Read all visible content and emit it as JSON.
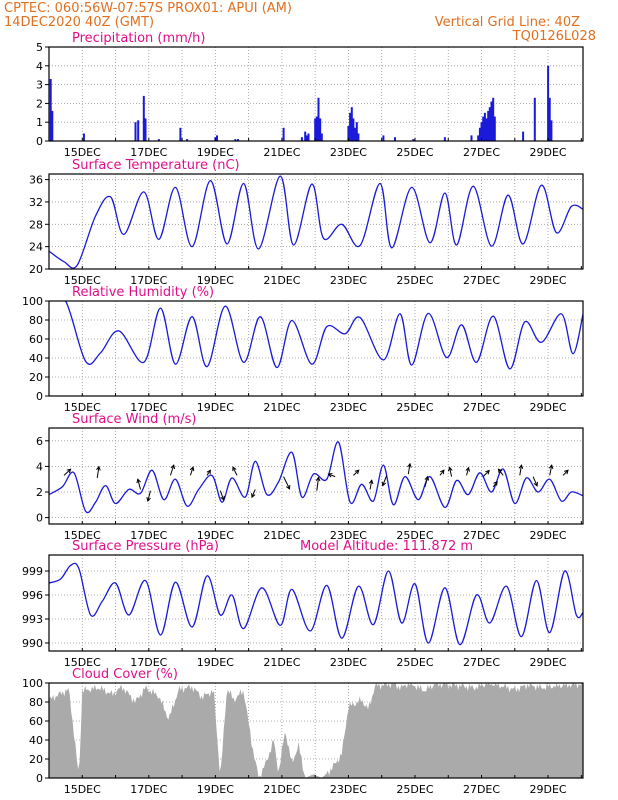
{
  "header": {
    "line1_left": "CPTEC:   060:56W-07:57S   PROX01: APUI (AM)",
    "line2_left": "14DEC2020 40Z (GMT)",
    "line2_right": "Vertical Grid Line: 40Z",
    "line3_right": "TQ0126L028",
    "text_color": "#e07020"
  },
  "style": {
    "title_color": "#e0108a",
    "series_color": "#1a1ad8",
    "cloud_fill": "#aaaaaa",
    "arrow_color": "#000000"
  },
  "chart_data": [
    {
      "id": "precip",
      "type": "bar",
      "title": "Precipitation (mm/h)",
      "ylim": [
        0,
        5
      ],
      "yticks": [
        0,
        1,
        2,
        3,
        4,
        5
      ],
      "x_labels": [
        "15DEC",
        "17DEC",
        "19DEC",
        "21DEC",
        "23DEC",
        "25DEC",
        "27DEC",
        "29DEC"
      ],
      "bars": [
        {
          "x": 0.05,
          "v": 3.3
        },
        {
          "x": 0.1,
          "v": 1.6
        },
        {
          "x": 1.05,
          "v": 0.4
        },
        {
          "x": 2.6,
          "v": 1.0
        },
        {
          "x": 2.68,
          "v": 1.1
        },
        {
          "x": 2.85,
          "v": 2.4
        },
        {
          "x": 2.9,
          "v": 1.2
        },
        {
          "x": 3.3,
          "v": 0.1
        },
        {
          "x": 3.95,
          "v": 0.7
        },
        {
          "x": 4.15,
          "v": 0.1
        },
        {
          "x": 5.0,
          "v": 0.2
        },
        {
          "x": 5.05,
          "v": 0.3
        },
        {
          "x": 5.6,
          "v": 0.1
        },
        {
          "x": 5.68,
          "v": 0.1
        },
        {
          "x": 7.05,
          "v": 0.7
        },
        {
          "x": 7.6,
          "v": 0.2
        },
        {
          "x": 7.7,
          "v": 0.5
        },
        {
          "x": 7.75,
          "v": 0.3
        },
        {
          "x": 7.8,
          "v": 0.4
        },
        {
          "x": 8.0,
          "v": 1.2
        },
        {
          "x": 8.05,
          "v": 1.3
        },
        {
          "x": 8.1,
          "v": 2.3
        },
        {
          "x": 8.15,
          "v": 1.2
        },
        {
          "x": 8.2,
          "v": 0.4
        },
        {
          "x": 9.0,
          "v": 0.8
        },
        {
          "x": 9.05,
          "v": 1.5
        },
        {
          "x": 9.1,
          "v": 1.8
        },
        {
          "x": 9.15,
          "v": 1.2
        },
        {
          "x": 9.2,
          "v": 0.7
        },
        {
          "x": 9.25,
          "v": 1.0
        },
        {
          "x": 9.3,
          "v": 0.4
        },
        {
          "x": 10.05,
          "v": 0.3
        },
        {
          "x": 10.4,
          "v": 0.2
        },
        {
          "x": 10.95,
          "v": 0.1
        },
        {
          "x": 11.9,
          "v": 0.2
        },
        {
          "x": 12.7,
          "v": 0.3
        },
        {
          "x": 12.9,
          "v": 0.3
        },
        {
          "x": 12.95,
          "v": 0.7
        },
        {
          "x": 13.0,
          "v": 1.0
        },
        {
          "x": 13.05,
          "v": 1.3
        },
        {
          "x": 13.1,
          "v": 1.5
        },
        {
          "x": 13.15,
          "v": 1.2
        },
        {
          "x": 13.2,
          "v": 1.6
        },
        {
          "x": 13.25,
          "v": 1.8
        },
        {
          "x": 13.3,
          "v": 2.1
        },
        {
          "x": 13.35,
          "v": 2.3
        },
        {
          "x": 13.4,
          "v": 1.3
        },
        {
          "x": 14.25,
          "v": 0.5
        },
        {
          "x": 14.6,
          "v": 2.3
        },
        {
          "x": 15.0,
          "v": 4.0
        },
        {
          "x": 15.05,
          "v": 2.3
        },
        {
          "x": 15.1,
          "v": 1.1
        }
      ]
    },
    {
      "id": "temp",
      "type": "line",
      "title": "Surface Temperature (nC)",
      "ylim": [
        20,
        37
      ],
      "yticks": [
        20,
        24,
        28,
        32,
        36
      ],
      "x_labels": [
        "15DEC",
        "17DEC",
        "19DEC",
        "21DEC",
        "23DEC",
        "25DEC",
        "27DEC",
        "29DEC"
      ],
      "anchors": [
        [
          0.0,
          23.2
        ],
        [
          0.45,
          21.3
        ],
        [
          0.85,
          20.7
        ],
        [
          1.4,
          29.5
        ],
        [
          1.85,
          32.9
        ],
        [
          2.25,
          26.2
        ],
        [
          2.85,
          33.8
        ],
        [
          3.3,
          25.3
        ],
        [
          3.8,
          34.6
        ],
        [
          4.3,
          24.0
        ],
        [
          4.85,
          35.8
        ],
        [
          5.35,
          24.5
        ],
        [
          5.85,
          35.3
        ],
        [
          6.3,
          23.6
        ],
        [
          6.95,
          36.6
        ],
        [
          7.35,
          24.3
        ],
        [
          7.9,
          35.2
        ],
        [
          8.25,
          25.5
        ],
        [
          8.8,
          28.0
        ],
        [
          9.35,
          24.2
        ],
        [
          9.95,
          35.3
        ],
        [
          10.3,
          23.8
        ],
        [
          10.9,
          34.6
        ],
        [
          11.45,
          24.7
        ],
        [
          11.9,
          33.6
        ],
        [
          12.25,
          24.3
        ],
        [
          12.75,
          34.8
        ],
        [
          13.3,
          24.1
        ],
        [
          13.8,
          33.2
        ],
        [
          14.25,
          24.5
        ],
        [
          14.8,
          35.0
        ],
        [
          15.25,
          26.5
        ],
        [
          15.7,
          31.2
        ],
        [
          16.05,
          30.7
        ]
      ]
    },
    {
      "id": "rh",
      "type": "line",
      "title": "Relative Humidity (%)",
      "ylim": [
        0,
        100
      ],
      "yticks": [
        0,
        20,
        40,
        60,
        80,
        100
      ],
      "x_labels": [
        "15DEC",
        "17DEC",
        "19DEC",
        "21DEC",
        "23DEC",
        "25DEC",
        "27DEC",
        "29DEC"
      ],
      "anchors": [
        [
          0.0,
          100
        ],
        [
          0.5,
          100
        ],
        [
          1.1,
          36.5
        ],
        [
          1.55,
          45.5
        ],
        [
          2.1,
          68.5
        ],
        [
          2.85,
          35.5
        ],
        [
          3.35,
          92.5
        ],
        [
          3.8,
          33.5
        ],
        [
          4.3,
          83.5
        ],
        [
          4.75,
          31.0
        ],
        [
          5.3,
          94.5
        ],
        [
          5.85,
          35.5
        ],
        [
          6.35,
          83.5
        ],
        [
          6.85,
          30.0
        ],
        [
          7.3,
          79.5
        ],
        [
          7.9,
          33.5
        ],
        [
          8.35,
          73.0
        ],
        [
          8.9,
          65.5
        ],
        [
          9.35,
          82.5
        ],
        [
          10.05,
          38.0
        ],
        [
          10.55,
          86.5
        ],
        [
          10.9,
          32.5
        ],
        [
          11.4,
          87.0
        ],
        [
          11.95,
          40.5
        ],
        [
          12.4,
          75.0
        ],
        [
          12.85,
          35.5
        ],
        [
          13.35,
          84.0
        ],
        [
          13.85,
          28.5
        ],
        [
          14.3,
          78.0
        ],
        [
          14.8,
          56.5
        ],
        [
          15.4,
          86.5
        ],
        [
          15.75,
          44.5
        ],
        [
          16.05,
          86.0
        ]
      ]
    },
    {
      "id": "wind",
      "type": "line",
      "title": "Surface Wind (m/s)",
      "ylim": [
        -0.5,
        7
      ],
      "yticks": [
        0,
        2,
        4,
        6
      ],
      "x_labels": [
        "15DEC",
        "17DEC",
        "19DEC",
        "21DEC",
        "23DEC",
        "25DEC",
        "27DEC",
        "29DEC"
      ],
      "anchors": [
        [
          0.0,
          1.8
        ],
        [
          0.4,
          2.4
        ],
        [
          0.75,
          3.5
        ],
        [
          1.1,
          0.5
        ],
        [
          1.4,
          1.2
        ],
        [
          1.7,
          2.5
        ],
        [
          2.0,
          1.1
        ],
        [
          2.4,
          2.2
        ],
        [
          2.75,
          1.9
        ],
        [
          3.1,
          3.7
        ],
        [
          3.45,
          1.4
        ],
        [
          3.8,
          3.0
        ],
        [
          4.15,
          0.9
        ],
        [
          4.5,
          2.2
        ],
        [
          4.9,
          3.3
        ],
        [
          5.2,
          1.2
        ],
        [
          5.5,
          3.1
        ],
        [
          5.9,
          1.6
        ],
        [
          6.2,
          4.4
        ],
        [
          6.55,
          1.8
        ],
        [
          6.9,
          2.8
        ],
        [
          7.3,
          5.1
        ],
        [
          7.6,
          1.6
        ],
        [
          7.95,
          3.4
        ],
        [
          8.35,
          3.0
        ],
        [
          8.7,
          5.9
        ],
        [
          9.05,
          1.2
        ],
        [
          9.4,
          2.6
        ],
        [
          9.75,
          1.3
        ],
        [
          10.05,
          4.1
        ],
        [
          10.35,
          1.0
        ],
        [
          10.7,
          3.2
        ],
        [
          11.1,
          1.4
        ],
        [
          11.45,
          3.2
        ],
        [
          11.9,
          0.8
        ],
        [
          12.25,
          2.9
        ],
        [
          12.6,
          1.8
        ],
        [
          12.95,
          3.5
        ],
        [
          13.3,
          2.0
        ],
        [
          13.65,
          3.8
        ],
        [
          14.0,
          1.1
        ],
        [
          14.35,
          3.1
        ],
        [
          14.7,
          2.0
        ],
        [
          15.05,
          3.0
        ],
        [
          15.4,
          1.3
        ],
        [
          15.7,
          2.0
        ],
        [
          16.05,
          1.7
        ]
      ],
      "arrows": [
        [
          0.45,
          3.3,
          0.2,
          0.12
        ],
        [
          1.45,
          3.1,
          0.05,
          0.22
        ],
        [
          2.75,
          2.2,
          -0.08,
          0.2
        ],
        [
          3.05,
          2.1,
          -0.08,
          -0.2
        ],
        [
          3.65,
          3.3,
          0.1,
          0.2
        ],
        [
          4.25,
          3.3,
          0.08,
          0.16
        ],
        [
          4.75,
          3.3,
          0.1,
          0.1
        ],
        [
          5.15,
          2.1,
          0.1,
          -0.18
        ],
        [
          5.65,
          3.3,
          -0.12,
          0.16
        ],
        [
          6.2,
          2.2,
          -0.1,
          -0.15
        ],
        [
          7.05,
          3.2,
          0.18,
          -0.24
        ],
        [
          8.05,
          2.1,
          0.05,
          0.26
        ],
        [
          8.6,
          3.2,
          -0.2,
          0.05
        ],
        [
          9.15,
          3.3,
          0.16,
          0.1
        ],
        [
          9.65,
          2.2,
          0.05,
          0.18
        ],
        [
          10.15,
          3.3,
          -0.12,
          -0.2
        ],
        [
          10.8,
          3.4,
          0.05,
          0.2
        ],
        [
          11.3,
          2.4,
          0.08,
          0.2
        ],
        [
          11.75,
          3.3,
          0.12,
          0.1
        ],
        [
          12.1,
          3.2,
          -0.06,
          0.18
        ],
        [
          12.55,
          3.3,
          0.06,
          0.15
        ],
        [
          13.05,
          3.2,
          0.18,
          0.12
        ],
        [
          13.35,
          2.4,
          0.12,
          0.1
        ],
        [
          13.65,
          3.3,
          -0.14,
          0.12
        ],
        [
          14.15,
          3.3,
          0.05,
          0.2
        ],
        [
          14.55,
          3.2,
          0.12,
          -0.18
        ],
        [
          15.05,
          3.3,
          0.06,
          0.2
        ],
        [
          15.45,
          3.3,
          0.15,
          0.1
        ]
      ]
    },
    {
      "id": "press",
      "type": "line",
      "title": "Surface Pressure (hPa)",
      "annotation": "Model Altitude: 111.872 m",
      "ylim": [
        989,
        1001
      ],
      "yticks": [
        990,
        993,
        996,
        999
      ],
      "x_labels": [
        "15DEC",
        "17DEC",
        "19DEC",
        "21DEC",
        "23DEC",
        "25DEC",
        "27DEC",
        "29DEC"
      ],
      "anchors": [
        [
          0.0,
          997.5
        ],
        [
          0.35,
          998.0
        ],
        [
          0.65,
          999.7
        ],
        [
          0.9,
          999.3
        ],
        [
          1.25,
          993.5
        ],
        [
          1.6,
          995.2
        ],
        [
          2.0,
          997.5
        ],
        [
          2.4,
          993.5
        ],
        [
          2.9,
          997.8
        ],
        [
          3.35,
          991.0
        ],
        [
          3.8,
          997.6
        ],
        [
          4.3,
          992.0
        ],
        [
          4.75,
          998.4
        ],
        [
          5.15,
          993.5
        ],
        [
          5.5,
          996.0
        ],
        [
          5.85,
          991.8
        ],
        [
          6.4,
          996.9
        ],
        [
          6.95,
          992.2
        ],
        [
          7.3,
          996.7
        ],
        [
          7.85,
          991.5
        ],
        [
          8.35,
          997.2
        ],
        [
          8.8,
          990.6
        ],
        [
          9.3,
          997.1
        ],
        [
          9.75,
          992.3
        ],
        [
          10.2,
          999.0
        ],
        [
          10.6,
          992.5
        ],
        [
          11.0,
          997.4
        ],
        [
          11.4,
          990.0
        ],
        [
          11.9,
          996.9
        ],
        [
          12.35,
          989.8
        ],
        [
          12.85,
          996.0
        ],
        [
          13.25,
          992.5
        ],
        [
          13.75,
          997.1
        ],
        [
          14.2,
          990.8
        ],
        [
          14.65,
          997.8
        ],
        [
          15.05,
          991.3
        ],
        [
          15.5,
          999.0
        ],
        [
          15.85,
          993.5
        ],
        [
          16.05,
          993.8
        ]
      ]
    },
    {
      "id": "cloud",
      "type": "area",
      "title": "Cloud Cover (%)",
      "ylim": [
        0,
        100
      ],
      "yticks": [
        0,
        20,
        40,
        60,
        80,
        100
      ],
      "x_labels": [
        "15DEC",
        "17DEC",
        "19DEC",
        "21DEC",
        "23DEC",
        "25DEC",
        "27DEC",
        "29DEC"
      ],
      "anchors": [
        [
          0.0,
          82
        ],
        [
          0.3,
          88
        ],
        [
          0.6,
          93
        ],
        [
          0.9,
          0
        ],
        [
          1.0,
          92
        ],
        [
          1.5,
          95
        ],
        [
          1.9,
          88
        ],
        [
          2.2,
          96
        ],
        [
          2.6,
          80
        ],
        [
          2.9,
          95
        ],
        [
          3.3,
          86
        ],
        [
          3.6,
          62
        ],
        [
          3.9,
          93
        ],
        [
          4.3,
          96
        ],
        [
          4.6,
          85
        ],
        [
          4.95,
          92
        ],
        [
          5.15,
          0
        ],
        [
          5.35,
          95
        ],
        [
          5.55,
          82
        ],
        [
          5.85,
          92
        ],
        [
          6.1,
          35
        ],
        [
          6.3,
          0
        ],
        [
          6.55,
          18
        ],
        [
          6.75,
          40
        ],
        [
          6.9,
          5
        ],
        [
          7.1,
          50
        ],
        [
          7.3,
          15
        ],
        [
          7.5,
          35
        ],
        [
          7.7,
          0
        ],
        [
          7.95,
          4
        ],
        [
          8.2,
          0
        ],
        [
          8.5,
          10
        ],
        [
          8.8,
          25
        ],
        [
          9.0,
          75
        ],
        [
          9.4,
          82
        ],
        [
          9.6,
          72
        ],
        [
          9.8,
          97
        ],
        [
          10.3,
          99
        ],
        [
          10.6,
          95
        ],
        [
          10.8,
          100
        ],
        [
          11.3,
          92
        ],
        [
          11.6,
          99
        ],
        [
          12.0,
          98
        ],
        [
          12.4,
          97
        ],
        [
          12.8,
          95
        ],
        [
          13.2,
          100
        ],
        [
          13.6,
          97
        ],
        [
          14.0,
          93
        ],
        [
          14.4,
          98
        ],
        [
          14.8,
          95
        ],
        [
          15.2,
          97
        ],
        [
          15.6,
          98
        ],
        [
          16.05,
          99
        ]
      ]
    }
  ]
}
